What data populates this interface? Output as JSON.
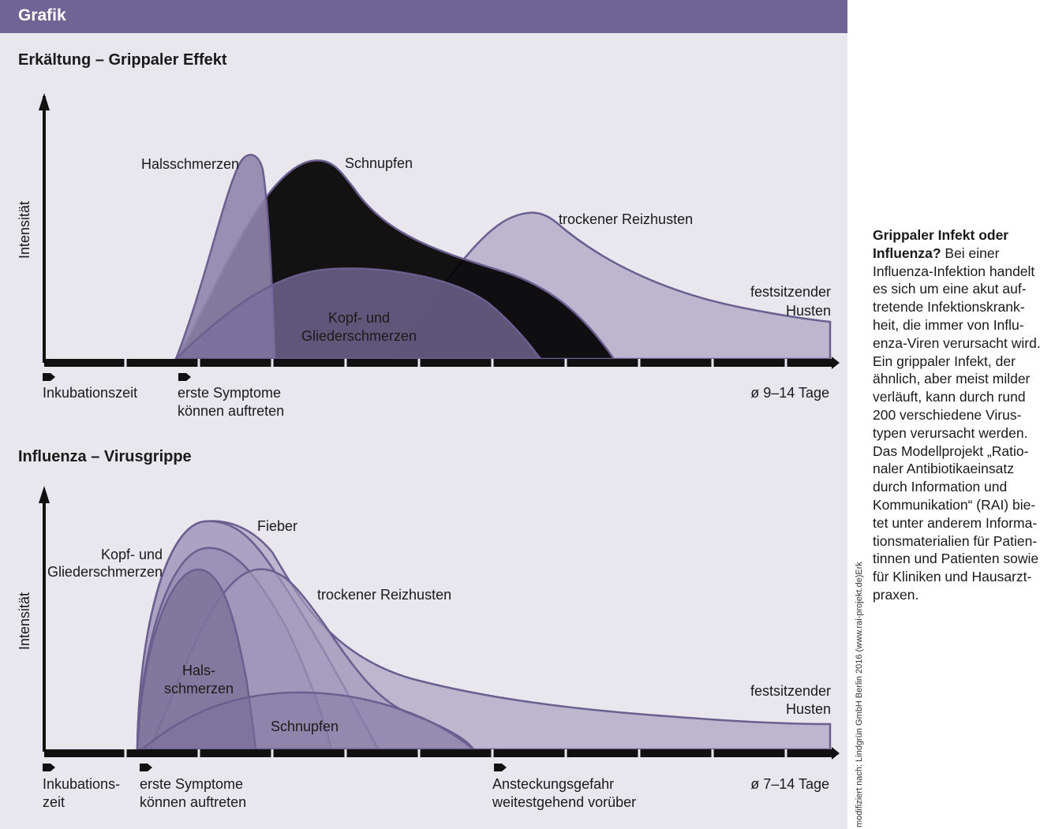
{
  "header": {
    "title": "Grafik"
  },
  "colors": {
    "header": "#6f6493",
    "panel": "#e8e7ed",
    "outline": "#6b5f90",
    "axis": "#111111"
  },
  "panel1": {
    "title": "Erkältung – Grippaler Effekt",
    "y_axis_label": "Intensität",
    "curves": {
      "halsschmerzen": "Halsschmerzen",
      "schnupfen": "Schnupfen",
      "reizhusten": "trockener Reizhusten",
      "husten_1": "festsitzender",
      "husten_2": "Husten",
      "kopf_1": "Kopf- und",
      "kopf_2": "Gliederschmerzen"
    },
    "timeline": {
      "start": "Inkubationszeit",
      "symptoms_1": "erste Symptome",
      "symptoms_2": "können auftreten",
      "duration": "ø 9–14 Tage"
    }
  },
  "panel2": {
    "title": "Influenza – Virusgrippe",
    "y_axis_label": "Intensität",
    "curves": {
      "fieber": "Fieber",
      "kopf_1": "Kopf- und",
      "kopf_2": "Gliederschmerzen",
      "reizhusten": "trockener Reizhusten",
      "hals_1": "Hals-",
      "hals_2": "schmerzen",
      "schnupfen": "Schnupfen",
      "husten_1": "festsitzender",
      "husten_2": "Husten"
    },
    "timeline": {
      "start_1": "Inkubations-",
      "start_2": "zeit",
      "symptoms_1": "erste Symptome",
      "symptoms_2": "können auftreten",
      "contagion_1": "Ansteckungsgefahr",
      "contagion_2": "weitestgehend vorüber",
      "duration": "ø 7–14 Tage"
    }
  },
  "credit": "modifiziert nach: Lindgrün GmbH Berlin 2016 (www.rai-projekt.de)Erk",
  "sidebar": {
    "heading_1": "Grippaler Infekt oder",
    "heading_2": "Influenza?",
    "line_2_rest": " Bei einer",
    "lines": [
      "Influenza-Infektion handelt",
      "es sich um eine akut auf-",
      "tretende Infektionskrank-",
      "heit, die immer von Influ-",
      "enza-Viren verursacht wird.",
      "Ein grippaler Infekt, der",
      "ähnlich, aber meist milder",
      "verläuft, kann durch rund",
      "200 verschiedene Virus-",
      "typen verursacht werden.",
      "Das Modellprojekt „Ratio-",
      "naler Antibiotikaeinsatz",
      "durch Information und",
      "Kommunikation“ (RAI) bie-",
      "tet unter anderem Informa-",
      "tionsmaterialien für Patien-",
      "tinnen und Patienten sowie",
      "für Kliniken und Hausarzt-",
      "praxen."
    ]
  }
}
